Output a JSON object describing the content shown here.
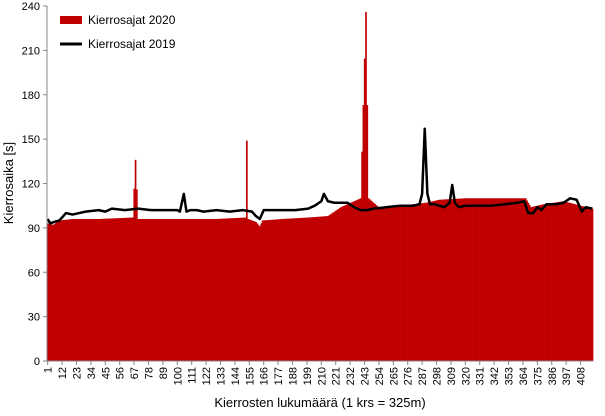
{
  "chart_data": {
    "type": "bar",
    "xlabel": "Kierrosten lukumäärä (1 krs = 325m)",
    "ylabel": "Kierrosaika [s]",
    "ylim": [
      0,
      240
    ],
    "yticks": [
      0,
      30,
      60,
      90,
      120,
      150,
      180,
      210,
      240
    ],
    "x_range": [
      1,
      417
    ],
    "xticks": [
      1,
      12,
      23,
      34,
      45,
      56,
      67,
      78,
      89,
      100,
      111,
      122,
      133,
      144,
      155,
      166,
      177,
      188,
      199,
      210,
      221,
      232,
      243,
      254,
      265,
      276,
      287,
      298,
      309,
      320,
      331,
      342,
      353,
      364,
      375,
      386,
      397,
      408
    ],
    "grid": false,
    "legend_position": "top-left",
    "series": [
      {
        "name": "Kierrosajat 2020",
        "style": "bars",
        "color": "#C00000",
        "points": [
          [
            1,
            93
          ],
          [
            5,
            92
          ],
          [
            10,
            95
          ],
          [
            20,
            96
          ],
          [
            40,
            96
          ],
          [
            66,
            97
          ],
          [
            68,
            136
          ],
          [
            70,
            96
          ],
          [
            100,
            96
          ],
          [
            130,
            96
          ],
          [
            152,
            97
          ],
          [
            153,
            149
          ],
          [
            154,
            96
          ],
          [
            160,
            94
          ],
          [
            163,
            91
          ],
          [
            165,
            95
          ],
          [
            180,
            96
          ],
          [
            200,
            97
          ],
          [
            215,
            98
          ],
          [
            225,
            104
          ],
          [
            240,
            110
          ],
          [
            244,
            236
          ],
          [
            246,
            110
          ],
          [
            255,
            103
          ],
          [
            265,
            104
          ],
          [
            280,
            106
          ],
          [
            290,
            107
          ],
          [
            300,
            109
          ],
          [
            320,
            110
          ],
          [
            340,
            110
          ],
          [
            360,
            110
          ],
          [
            366,
            110
          ],
          [
            370,
            104
          ],
          [
            380,
            106
          ],
          [
            395,
            108
          ],
          [
            408,
            105
          ],
          [
            417,
            103
          ]
        ]
      },
      {
        "name": "Kierrosajat 2019",
        "style": "line",
        "color": "#000000",
        "points": [
          [
            1,
            96
          ],
          [
            3,
            93
          ],
          [
            6,
            94
          ],
          [
            10,
            95
          ],
          [
            15,
            100
          ],
          [
            20,
            99
          ],
          [
            25,
            100
          ],
          [
            30,
            101
          ],
          [
            40,
            102
          ],
          [
            45,
            101
          ],
          [
            50,
            103
          ],
          [
            60,
            102
          ],
          [
            70,
            103
          ],
          [
            80,
            102
          ],
          [
            90,
            102
          ],
          [
            100,
            102
          ],
          [
            102,
            101
          ],
          [
            105,
            113
          ],
          [
            107,
            101
          ],
          [
            110,
            102
          ],
          [
            115,
            102
          ],
          [
            120,
            101
          ],
          [
            130,
            102
          ],
          [
            140,
            101
          ],
          [
            150,
            102
          ],
          [
            157,
            101
          ],
          [
            160,
            98
          ],
          [
            163,
            96
          ],
          [
            166,
            102
          ],
          [
            170,
            102
          ],
          [
            180,
            102
          ],
          [
            190,
            102
          ],
          [
            200,
            103
          ],
          [
            205,
            105
          ],
          [
            210,
            108
          ],
          [
            212,
            113
          ],
          [
            215,
            108
          ],
          [
            220,
            107
          ],
          [
            230,
            107
          ],
          [
            235,
            104
          ],
          [
            240,
            102
          ],
          [
            245,
            102
          ],
          [
            250,
            103
          ],
          [
            260,
            104
          ],
          [
            270,
            105
          ],
          [
            280,
            105
          ],
          [
            285,
            106
          ],
          [
            287,
            113
          ],
          [
            289,
            157
          ],
          [
            291,
            113
          ],
          [
            293,
            106
          ],
          [
            296,
            106
          ],
          [
            300,
            105
          ],
          [
            304,
            104
          ],
          [
            308,
            107
          ],
          [
            310,
            119
          ],
          [
            312,
            107
          ],
          [
            315,
            104
          ],
          [
            320,
            105
          ],
          [
            330,
            105
          ],
          [
            340,
            105
          ],
          [
            350,
            106
          ],
          [
            360,
            107
          ],
          [
            365,
            108
          ],
          [
            368,
            100
          ],
          [
            372,
            100
          ],
          [
            375,
            104
          ],
          [
            378,
            102
          ],
          [
            382,
            106
          ],
          [
            390,
            106
          ],
          [
            395,
            107
          ],
          [
            400,
            110
          ],
          [
            405,
            109
          ],
          [
            409,
            101
          ],
          [
            412,
            104
          ],
          [
            417,
            103
          ]
        ]
      }
    ]
  }
}
